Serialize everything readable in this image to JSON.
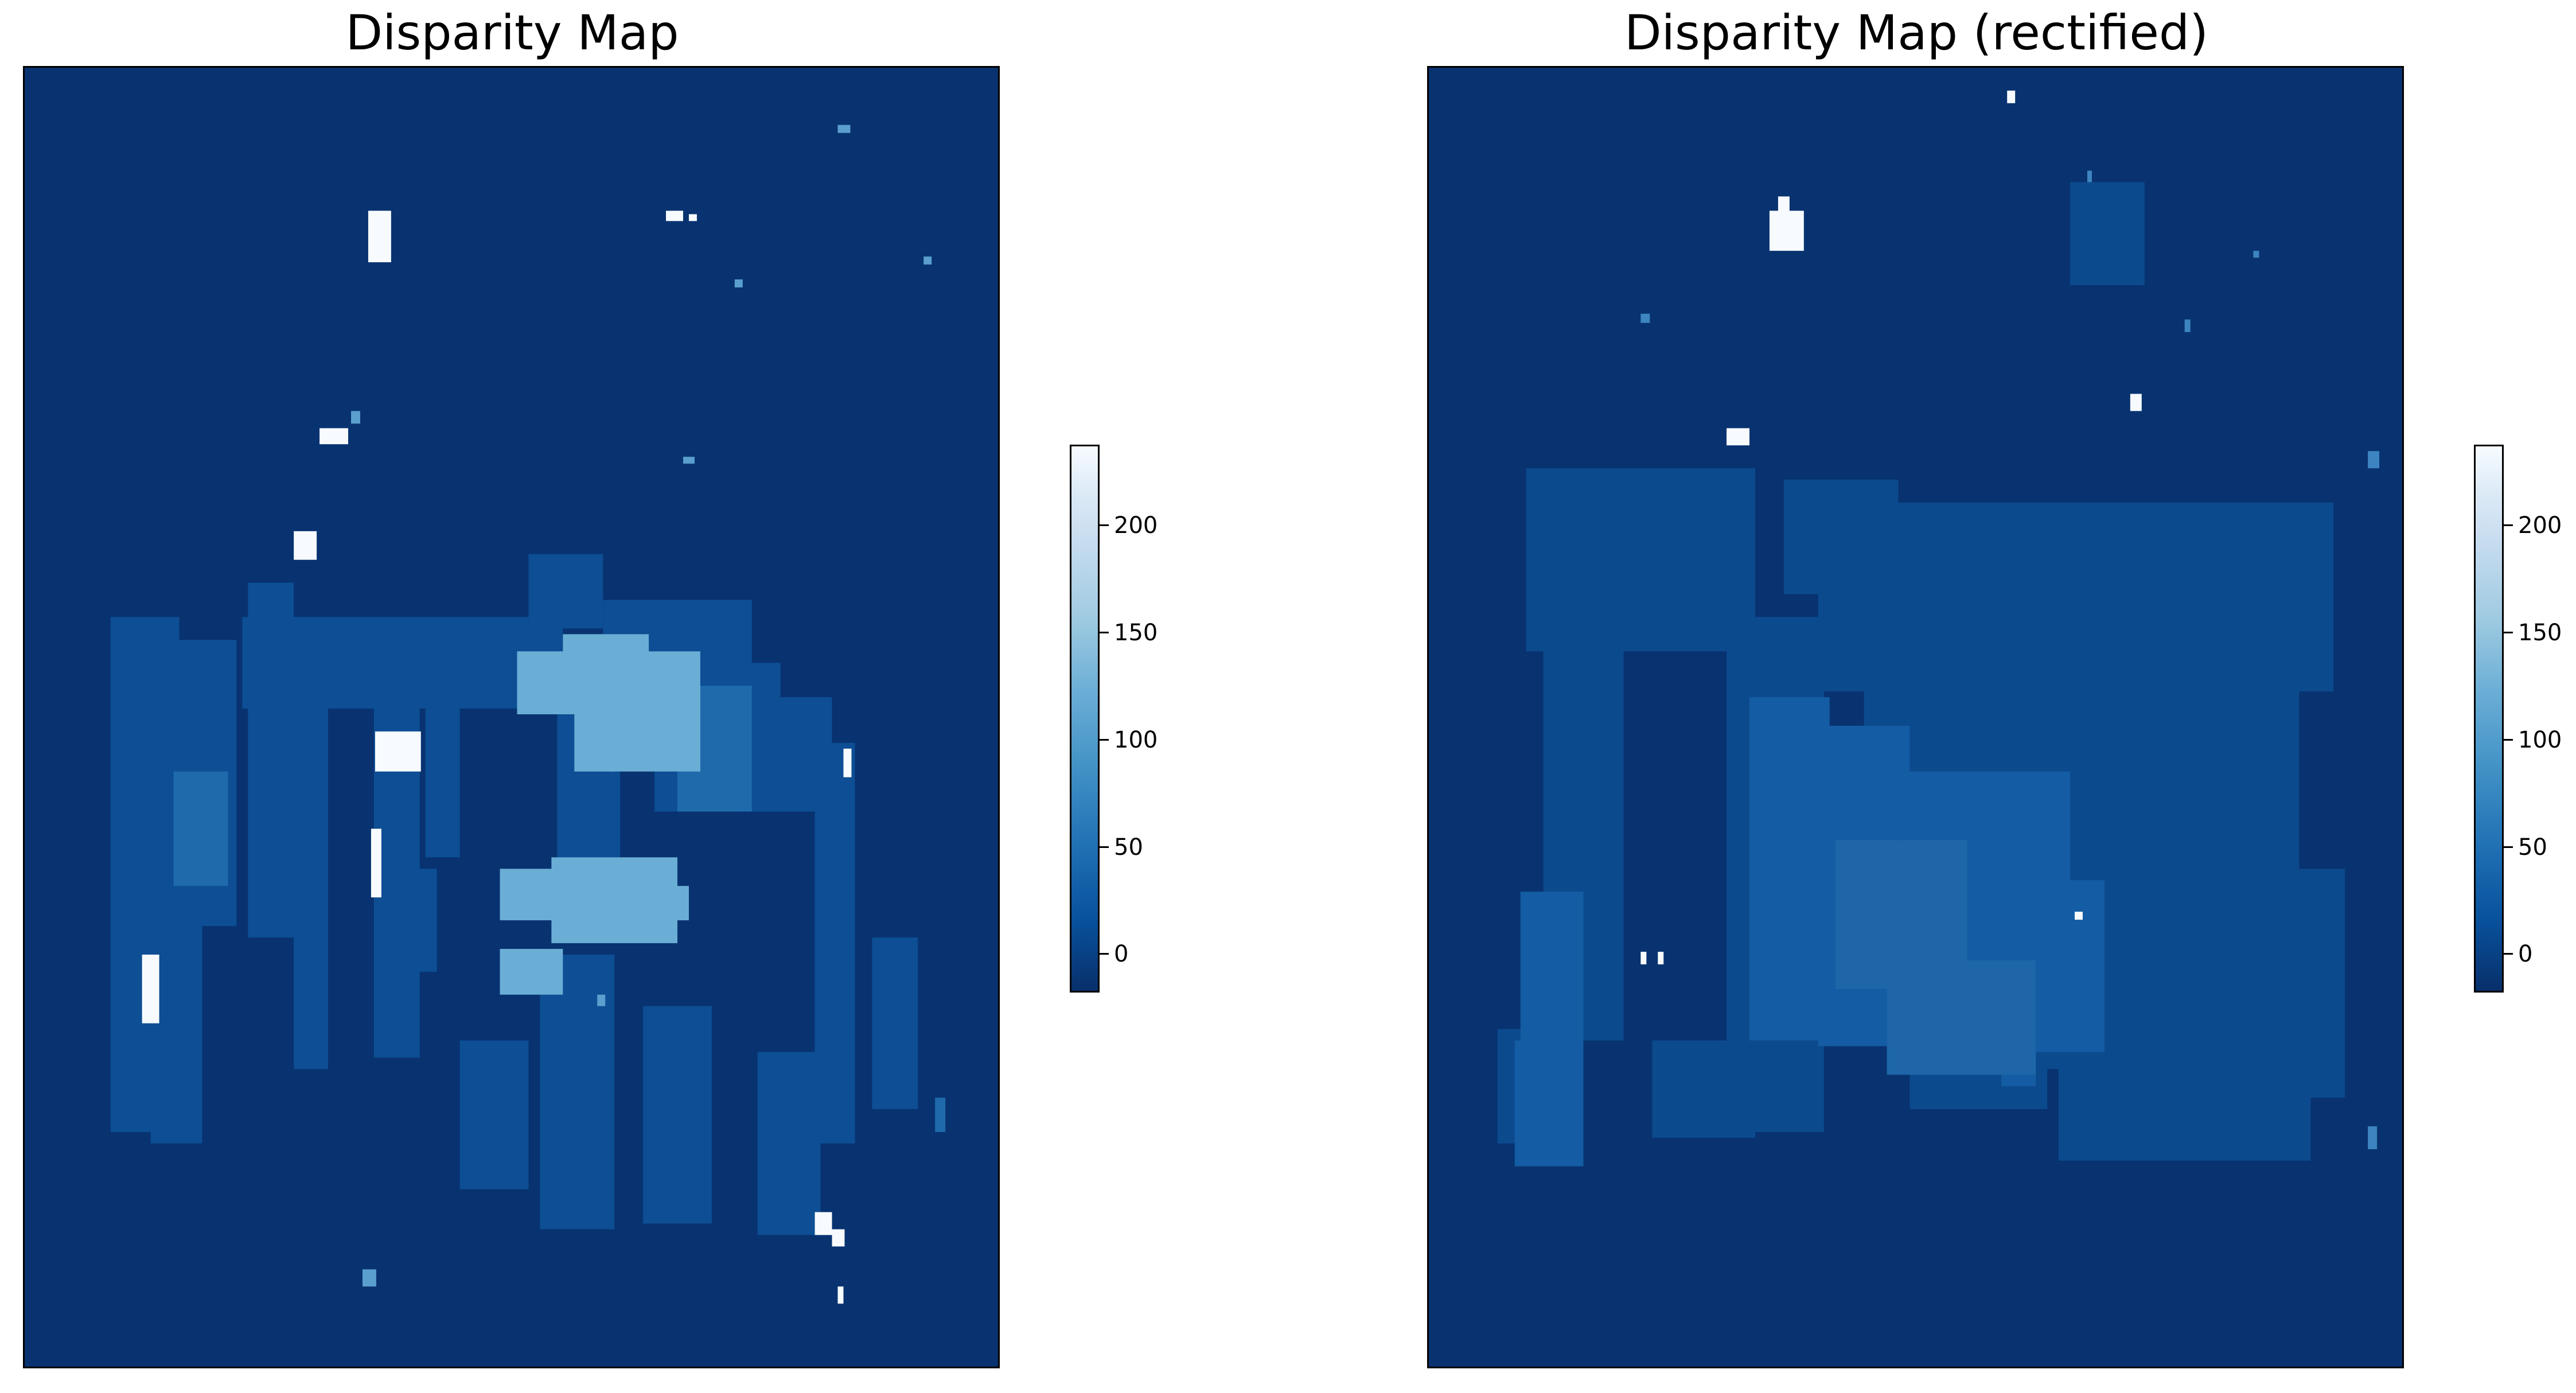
{
  "charts": [
    {
      "title": "Disparity Map",
      "colormap": "Blues_r",
      "colorbar": {
        "min": -15,
        "max": 238,
        "ticks": [
          0,
          50,
          100,
          150,
          200
        ]
      }
    },
    {
      "title": "Disparity Map (rectified)",
      "colormap": "Blues_r",
      "colorbar": {
        "min": -15,
        "max": 238,
        "ticks": [
          0,
          50,
          100,
          150,
          200
        ]
      }
    }
  ],
  "chart_data": [
    {
      "type": "heatmap",
      "title": "Disparity Map",
      "colorbar_range": [
        -15,
        238
      ],
      "colorbar_ticks": [
        0,
        50,
        100,
        150,
        200
      ],
      "axes_ticks": "hidden",
      "background_value": -10
    },
    {
      "type": "heatmap",
      "title": "Disparity Map (rectified)",
      "colorbar_range": [
        -15,
        238
      ],
      "colorbar_ticks": [
        0,
        50,
        100,
        150,
        200
      ],
      "axes_ticks": "hidden",
      "background_value": -10
    }
  ]
}
